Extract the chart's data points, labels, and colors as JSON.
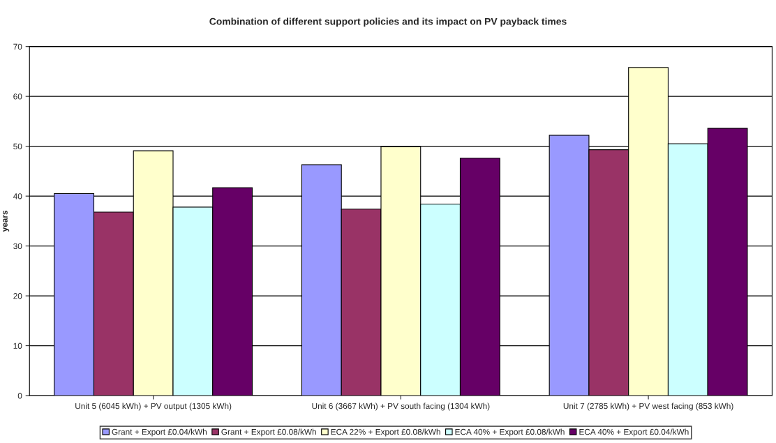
{
  "chart_data": {
    "type": "bar",
    "title": "Combination of different support policies and its impact on PV payback times",
    "ylabel": "years",
    "categories": [
      "Unit 5 (6045 kWh) + PV output (1305 kWh)",
      "Unit 6 (3667 kWh) + PV south facing (1304 kWh)",
      "Unit 7 (2785 kWh) + PV west facing (853 kWh)"
    ],
    "series": [
      {
        "name": "Grant + Export £0.04/kWh",
        "color": "#9999ff",
        "values": [
          40.5,
          46.3,
          52.2
        ]
      },
      {
        "name": "Grant + Export £0.08/kWh",
        "color": "#993366",
        "values": [
          36.8,
          37.4,
          49.3
        ]
      },
      {
        "name": "ECA 22% + Export £0.08/kWh",
        "color": "#ffffcc",
        "values": [
          49.1,
          49.9,
          65.8
        ]
      },
      {
        "name": "ECA 40% + Export £0.08/kWh",
        "color": "#ccffff",
        "values": [
          37.8,
          38.4,
          50.5
        ]
      },
      {
        "name": "ECA 40% + Export £0.04/kWh",
        "color": "#660066",
        "values": [
          41.7,
          47.6,
          53.6
        ]
      }
    ],
    "ylim": [
      0,
      70
    ],
    "yticks": [
      0,
      10,
      20,
      30,
      40,
      50,
      60,
      70
    ],
    "grid": "y",
    "legend": "bottom"
  }
}
